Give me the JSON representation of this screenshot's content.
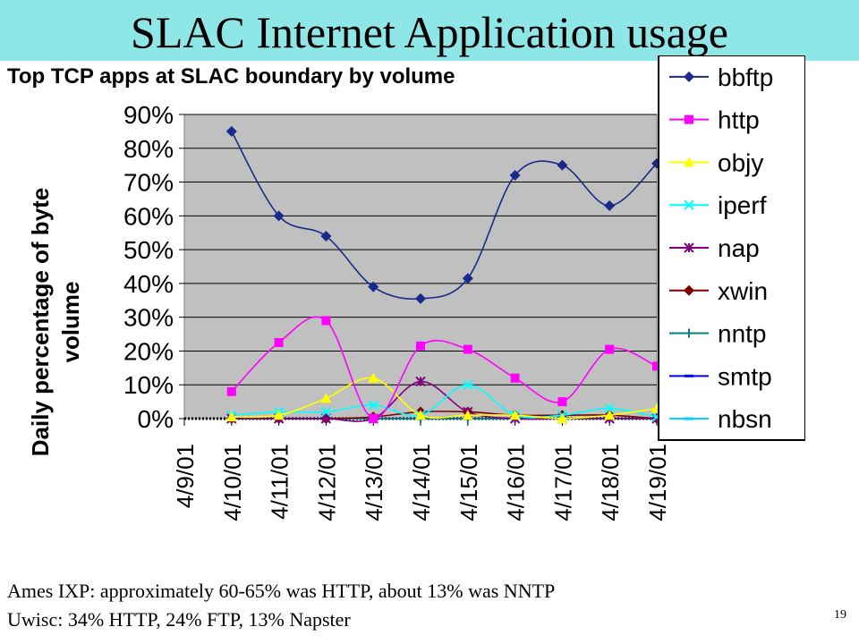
{
  "slide": {
    "title": "SLAC Internet Application usage",
    "footer_lines": [
      "Ames IXP: approximately 60-65% was HTTP, about 13% was NNTP",
      "Uwisc: 34% HTTP, 24% FTP, 13% Napster"
    ],
    "page_number": "19"
  },
  "chart_data": {
    "type": "line",
    "title": "Top TCP apps at SLAC  boundary by volume",
    "ylabel": "Daily percentage of byte volume",
    "xlabel": "",
    "categories": [
      "4/9/01",
      "4/10/01",
      "4/11/01",
      "4/12/01",
      "4/13/01",
      "4/14/01",
      "4/15/01",
      "4/16/01",
      "4/17/01",
      "4/18/01",
      "4/19/01"
    ],
    "ylim": [
      0,
      90
    ],
    "yticks": [
      0,
      10,
      20,
      30,
      40,
      50,
      60,
      70,
      80,
      90
    ],
    "ytick_labels": [
      "0%",
      "10%",
      "20%",
      "30%",
      "40%",
      "50%",
      "60%",
      "70%",
      "80%",
      "90%"
    ],
    "grid": true,
    "plot_background": "#c0c0c0",
    "smooth": true,
    "legend_position": "right",
    "series": [
      {
        "name": "bbftp",
        "color": "#1a2a8a",
        "marker": "diamond",
        "values": [
          null,
          85,
          60,
          54,
          39,
          35.5,
          41.5,
          72,
          75,
          63,
          75.5
        ]
      },
      {
        "name": "http",
        "color": "#ff00ff",
        "marker": "square",
        "values": [
          null,
          8,
          22.5,
          29,
          0,
          21.5,
          20.5,
          12,
          5,
          20.5,
          15.5
        ]
      },
      {
        "name": "objy",
        "color": "#ffff00",
        "marker": "triangle",
        "values": [
          null,
          0.5,
          1,
          6,
          12,
          1,
          1,
          1,
          0,
          1,
          3
        ]
      },
      {
        "name": "iperf",
        "color": "#00ffff",
        "marker": "x",
        "values": [
          null,
          1,
          2,
          2,
          4,
          1,
          10,
          1,
          1,
          3,
          0.5
        ]
      },
      {
        "name": "nap",
        "color": "#800080",
        "marker": "star",
        "values": [
          null,
          0,
          0,
          0,
          0,
          11,
          2,
          0,
          0,
          0,
          0
        ]
      },
      {
        "name": "xwin",
        "color": "#800000",
        "marker": "diamond",
        "values": [
          null,
          0,
          0,
          0,
          0.5,
          2,
          2,
          1,
          1,
          1,
          0
        ]
      },
      {
        "name": "nntp",
        "color": "#008080",
        "marker": "plus",
        "values": [
          null,
          0,
          0,
          0,
          0,
          0,
          0,
          0,
          0,
          0,
          0
        ]
      },
      {
        "name": "smtp",
        "color": "#0000ff",
        "marker": "dash",
        "values": [
          null,
          0,
          0,
          0,
          0,
          0,
          0,
          0,
          0,
          0,
          0
        ]
      },
      {
        "name": "nbsn",
        "color": "#00ccff",
        "marker": "dash",
        "values": [
          null,
          0,
          0,
          0,
          0,
          0,
          0,
          0,
          0,
          0,
          0
        ]
      }
    ]
  }
}
